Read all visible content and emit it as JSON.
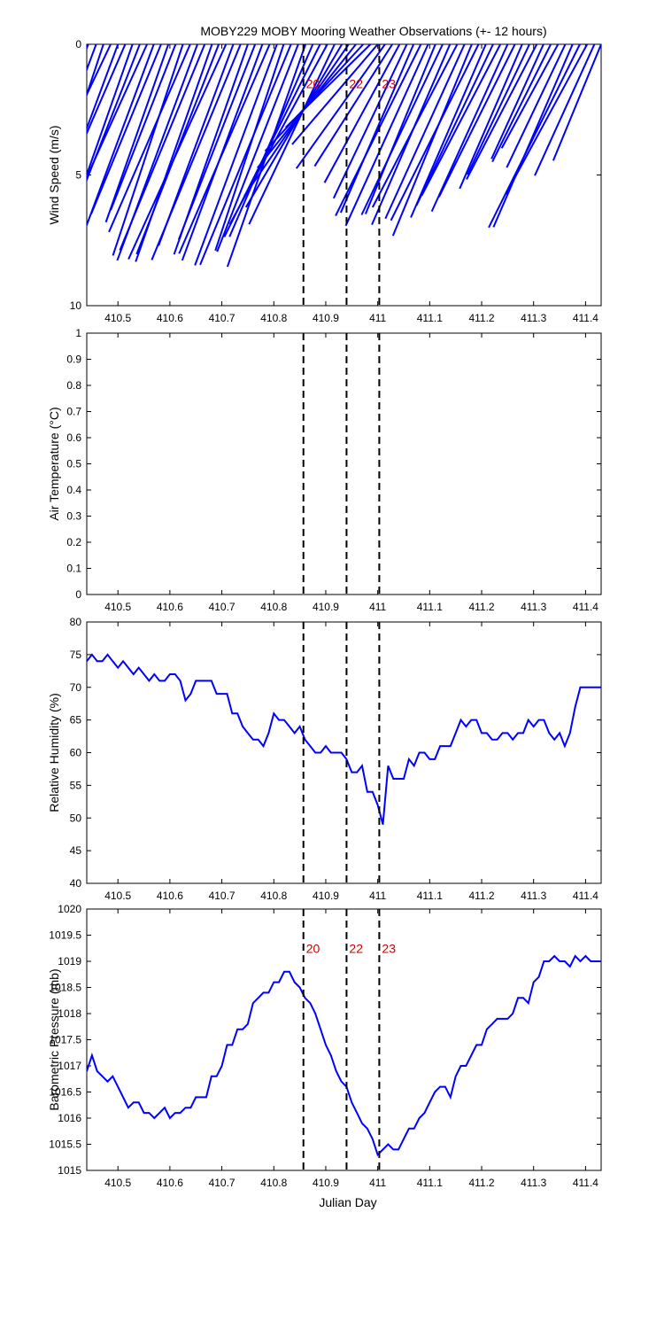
{
  "title": "MOBY229 MOBY Mooring Weather Observations (+- 12 hours)",
  "xlabel": "Julian Day",
  "colors": {
    "series": "#0000ff",
    "marker": "#000000",
    "marker_label": "#cc0000"
  },
  "markers": [
    {
      "x": 410.857,
      "label": "20"
    },
    {
      "x": 410.94,
      "label": "22"
    },
    {
      "x": 411.003,
      "label": "23"
    }
  ],
  "chart_data": [
    {
      "type": "line",
      "subtype": "wind-vector-stick-plot",
      "ylabel": "Wind Speed (m/s)",
      "xlim": [
        410.44,
        411.43
      ],
      "ylim": [
        0,
        10
      ],
      "y_reversed": true,
      "xticks": [
        410.5,
        410.6,
        410.7,
        410.8,
        410.9,
        411,
        411.1,
        411.2,
        411.3,
        411.4
      ],
      "yticks": [
        0,
        5,
        10
      ],
      "marker_labels_y": 1.5,
      "series": [
        {
          "x": [
            410.443,
            410.458,
            410.472,
            410.486,
            410.5,
            410.514,
            410.528,
            410.542,
            410.556,
            410.569,
            410.583,
            410.597,
            410.611,
            410.625,
            410.639,
            410.653,
            410.667,
            410.681,
            410.694,
            410.708,
            410.722,
            410.736,
            410.75,
            410.764,
            410.778,
            410.792,
            410.806,
            410.819,
            410.833,
            410.847,
            410.861,
            410.875,
            410.889,
            410.903,
            410.917,
            410.931,
            410.944,
            410.958,
            410.972,
            410.986,
            411.0,
            411.014,
            411.028,
            411.042,
            411.056,
            411.069,
            411.083,
            411.097,
            411.111,
            411.125,
            411.139,
            411.153,
            411.167,
            411.181,
            411.194,
            411.208,
            411.222,
            411.236,
            411.25,
            411.264,
            411.278,
            411.292,
            411.306,
            411.319,
            411.333,
            411.347,
            411.361,
            411.375,
            411.389,
            411.403,
            411.417,
            411.43
          ],
          "values": [
            7.0,
            6.2,
            7.5,
            6.8,
            7.2,
            6.5,
            8.2,
            7.0,
            6.8,
            7.5,
            7.0,
            7.2,
            6.8,
            8.5,
            7.8,
            8.8,
            8.5,
            8.8,
            8.6,
            9.0,
            8.2,
            8.9,
            8.5,
            8.0,
            8.8,
            8.7,
            9.0,
            8.3,
            9.1,
            8.5,
            9.0,
            8.0,
            8.2,
            7.8,
            7.6,
            7.2,
            7.0,
            6.0,
            5.5,
            4.5,
            5.0,
            5.8,
            5.5,
            6.0,
            6.5,
            7.0,
            7.3,
            7.6,
            7.0,
            7.2,
            7.5,
            7.0,
            7.3,
            7.9,
            7.5,
            7.2,
            6.8,
            6.5,
            7.0,
            6.5,
            6.0,
            5.5,
            5.8,
            4.8,
            5.0,
            4.5,
            5.2,
            7.6,
            7.8,
            6.5,
            5.5,
            4.8
          ],
          "direction_deg": [
            202,
            200,
            198,
            205,
            200,
            203,
            199,
            201,
            204,
            200,
            202,
            199,
            201,
            198,
            203,
            200,
            202,
            199,
            201,
            204,
            200,
            202,
            199,
            201,
            200,
            203,
            200,
            198,
            202,
            201,
            199,
            203,
            206,
            208,
            205,
            210,
            214,
            218,
            222,
            225,
            220,
            215,
            212,
            208,
            205,
            203,
            206,
            204,
            202,
            205,
            203,
            207,
            204,
            202,
            206,
            203,
            205,
            207,
            204,
            206,
            203,
            205,
            207,
            204,
            206,
            208,
            205,
            203,
            206,
            208,
            204,
            202
          ]
        }
      ]
    },
    {
      "type": "line",
      "ylabel": "Air Temperature (°C)",
      "xlim": [
        410.44,
        411.43
      ],
      "ylim": [
        0,
        1
      ],
      "xticks": [
        410.5,
        410.6,
        410.7,
        410.8,
        410.9,
        411,
        411.1,
        411.2,
        411.3,
        411.4
      ],
      "yticks": [
        0,
        0.1,
        0.2,
        0.3,
        0.4,
        0.5,
        0.6,
        0.7,
        0.8,
        0.9,
        1
      ],
      "series": []
    },
    {
      "type": "line",
      "ylabel": "Relative Humidity (%)",
      "xlim": [
        410.44,
        411.43
      ],
      "ylim": [
        40,
        80
      ],
      "xticks": [
        410.5,
        410.6,
        410.7,
        410.8,
        410.9,
        411,
        411.1,
        411.2,
        411.3,
        411.4
      ],
      "yticks": [
        40,
        45,
        50,
        55,
        60,
        65,
        70,
        75,
        80
      ],
      "series": [
        {
          "x": [
            410.44,
            410.45,
            410.46,
            410.47,
            410.48,
            410.49,
            410.5,
            410.51,
            410.52,
            410.53,
            410.54,
            410.55,
            410.56,
            410.57,
            410.58,
            410.59,
            410.6,
            410.61,
            410.62,
            410.63,
            410.64,
            410.65,
            410.66,
            410.67,
            410.68,
            410.69,
            410.7,
            410.71,
            410.72,
            410.73,
            410.74,
            410.75,
            410.76,
            410.77,
            410.78,
            410.79,
            410.8,
            410.81,
            410.82,
            410.83,
            410.84,
            410.85,
            410.86,
            410.87,
            410.88,
            410.89,
            410.9,
            410.91,
            410.92,
            410.93,
            410.94,
            410.95,
            410.96,
            410.97,
            410.98,
            410.99,
            411.0,
            411.01,
            411.02,
            411.03,
            411.04,
            411.05,
            411.06,
            411.07,
            411.08,
            411.09,
            411.1,
            411.11,
            411.12,
            411.13,
            411.14,
            411.15,
            411.16,
            411.17,
            411.18,
            411.19,
            411.2,
            411.21,
            411.22,
            411.23,
            411.24,
            411.25,
            411.26,
            411.27,
            411.28,
            411.29,
            411.3,
            411.31,
            411.32,
            411.33,
            411.34,
            411.35,
            411.36,
            411.37,
            411.38,
            411.39,
            411.4,
            411.41,
            411.42,
            411.43
          ],
          "values": [
            74,
            75,
            74,
            74,
            75,
            74,
            73,
            74,
            73,
            72,
            73,
            72,
            71,
            72,
            71,
            71,
            72,
            72,
            71,
            68,
            69,
            71,
            71,
            71,
            71,
            69,
            69,
            69,
            66,
            66,
            64,
            63,
            62,
            62,
            61,
            63,
            66,
            65,
            65,
            64,
            63,
            64,
            62,
            61,
            60,
            60,
            61,
            60,
            60,
            60,
            59,
            57,
            57,
            58,
            54,
            54,
            52,
            49,
            58,
            56,
            56,
            56,
            59,
            58,
            60,
            60,
            59,
            59,
            61,
            61,
            61,
            63,
            65,
            64,
            65,
            65,
            63,
            63,
            62,
            62,
            63,
            63,
            62,
            63,
            63,
            65,
            64,
            65,
            65,
            63,
            62,
            63,
            61,
            63,
            67,
            70,
            70,
            70,
            70,
            70
          ],
          "x_trim": null
        }
      ]
    },
    {
      "type": "line",
      "ylabel": "Barometric Pressure (mb)",
      "xlim": [
        410.44,
        411.43
      ],
      "ylim": [
        1015,
        1020
      ],
      "xticks": [
        410.5,
        410.6,
        410.7,
        410.8,
        410.9,
        411,
        411.1,
        411.2,
        411.3,
        411.4
      ],
      "yticks": [
        1015,
        1015.5,
        1016,
        1016.5,
        1017,
        1017.5,
        1018,
        1018.5,
        1019,
        1019.5,
        1020
      ],
      "marker_labels_y": 1019.25,
      "series": [
        {
          "x": [
            410.44,
            410.45,
            410.46,
            410.47,
            410.48,
            410.49,
            410.5,
            410.51,
            410.52,
            410.53,
            410.54,
            410.55,
            410.56,
            410.57,
            410.58,
            410.59,
            410.6,
            410.61,
            410.62,
            410.63,
            410.64,
            410.65,
            410.66,
            410.67,
            410.68,
            410.69,
            410.7,
            410.71,
            410.72,
            410.73,
            410.74,
            410.75,
            410.76,
            410.77,
            410.78,
            410.79,
            410.8,
            410.81,
            410.82,
            410.83,
            410.84,
            410.85,
            410.86,
            410.87,
            410.88,
            410.89,
            410.9,
            410.91,
            410.92,
            410.93,
            410.94,
            410.95,
            410.96,
            410.97,
            410.98,
            410.99,
            411.0,
            411.01,
            411.02,
            411.03,
            411.04,
            411.05,
            411.06,
            411.07,
            411.08,
            411.09,
            411.1,
            411.11,
            411.12,
            411.13,
            411.14,
            411.15,
            411.16,
            411.17,
            411.18,
            411.19,
            411.2,
            411.21,
            411.22,
            411.23,
            411.24,
            411.25,
            411.26,
            411.27,
            411.28,
            411.29,
            411.3,
            411.31,
            411.32,
            411.33,
            411.34,
            411.35,
            411.36,
            411.37,
            411.38,
            411.39,
            411.4,
            411.41,
            411.42,
            411.43
          ],
          "values": [
            1016.9,
            1017.2,
            1016.9,
            1016.8,
            1016.7,
            1016.8,
            1016.6,
            1016.4,
            1016.2,
            1016.3,
            1016.3,
            1016.1,
            1016.1,
            1016.0,
            1016.1,
            1016.2,
            1016.0,
            1016.1,
            1016.1,
            1016.2,
            1016.2,
            1016.4,
            1016.4,
            1016.4,
            1016.8,
            1016.8,
            1017.0,
            1017.4,
            1017.4,
            1017.7,
            1017.7,
            1017.8,
            1018.2,
            1018.3,
            1018.4,
            1018.4,
            1018.6,
            1018.6,
            1018.8,
            1018.8,
            1018.6,
            1018.5,
            1018.3,
            1018.2,
            1018.0,
            1017.7,
            1017.4,
            1017.2,
            1016.9,
            1016.7,
            1016.6,
            1016.3,
            1016.1,
            1015.9,
            1015.8,
            1015.6,
            1015.3,
            1015.4,
            1015.5,
            1015.4,
            1015.4,
            1015.6,
            1015.8,
            1015.8,
            1016.0,
            1016.1,
            1016.3,
            1016.5,
            1016.6,
            1016.6,
            1016.4,
            1016.8,
            1017.0,
            1017.0,
            1017.2,
            1017.4,
            1017.4,
            1017.7,
            1017.8,
            1017.9,
            1017.9,
            1017.9,
            1018.0,
            1018.3,
            1018.3,
            1018.2,
            1018.6,
            1018.7,
            1019.0,
            1019.0,
            1019.1,
            1019.0,
            1019.0,
            1018.9,
            1019.1,
            1019.0,
            1019.1,
            1019.0,
            1019.0,
            1019.0
          ]
        }
      ]
    }
  ]
}
